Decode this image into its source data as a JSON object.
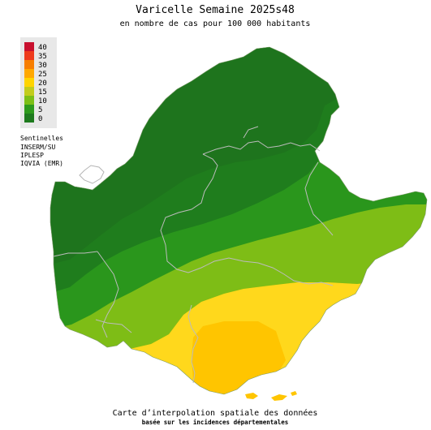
{
  "header": {
    "title": "Varicelle Semaine 2025s48",
    "subtitle": "en nombre de cas pour 100 000 habitants"
  },
  "legend": {
    "items": [
      {
        "label": "40",
        "color": "#c8102e"
      },
      {
        "label": "35",
        "color": "#ee3a1c"
      },
      {
        "label": "30",
        "color": "#f77e00"
      },
      {
        "label": "25",
        "color": "#ffa800"
      },
      {
        "label": "20",
        "color": "#ffd400"
      },
      {
        "label": "15",
        "color": "#c2cc1c"
      },
      {
        "label": "10",
        "color": "#7cbf16"
      },
      {
        "label": "5",
        "color": "#2d9a1c"
      },
      {
        "label": "0",
        "color": "#1e7a1e"
      }
    ]
  },
  "sources": {
    "line1": "Sentinelles",
    "line2": "INSERM/SU",
    "line3": "IPLESP",
    "line4": "IQVIA (EMR)"
  },
  "footer": {
    "title": "Carte d’interpolation spatiale des données",
    "subtitle": "basée sur les incidences départementales"
  },
  "map": {
    "zone_colors": {
      "darkest": "#1e6e1e",
      "dark": "#1f7d1d",
      "green": "#2a961c",
      "light_green": "#7ebd16",
      "yellow": "#ffd81c",
      "gold": "#ffc500"
    },
    "border_color": "#bcbcbc"
  }
}
